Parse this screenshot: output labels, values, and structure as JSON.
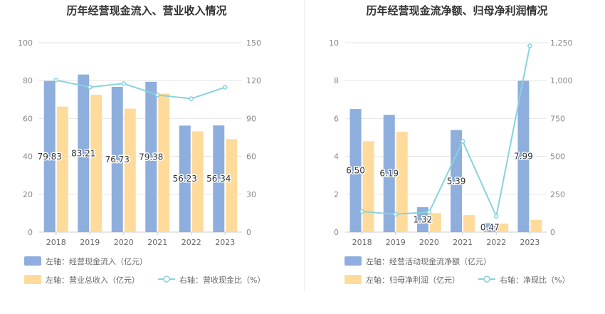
{
  "chart_data": [
    {
      "type": "bar",
      "title": "历年经营现金流入、营业收入情况",
      "categories": [
        "2018",
        "2019",
        "2020",
        "2021",
        "2022",
        "2023"
      ],
      "left_axis": {
        "ylim": [
          0,
          100
        ],
        "ticks": [
          "0",
          "20",
          "40",
          "60",
          "80",
          "100"
        ]
      },
      "right_axis": {
        "ylim": [
          0,
          150
        ],
        "ticks": [
          "0",
          "30",
          "60",
          "90",
          "120",
          "150"
        ]
      },
      "series": [
        {
          "name": "左轴：经营现金流入（亿元）",
          "type": "bar",
          "axis": "left",
          "color": "#8eaedd",
          "values": [
            79.83,
            83.21,
            76.73,
            79.38,
            56.23,
            56.34
          ],
          "labels": [
            "79.83",
            "83.21",
            "76.73",
            "79.38",
            "56.23",
            "56.34"
          ]
        },
        {
          "name": "左轴：营业总收入（亿元）",
          "type": "bar",
          "axis": "left",
          "color": "#ffdb9b",
          "values": [
            66.3,
            72.5,
            65.2,
            73.1,
            53.2,
            49.1
          ]
        },
        {
          "name": "右轴：营收现金比（%）",
          "type": "line",
          "axis": "right",
          "color": "#88d3dc",
          "values": [
            120.4,
            114.8,
            117.7,
            108.6,
            105.7,
            114.7
          ]
        }
      ],
      "legend_position": "bottom-left",
      "grid": true
    },
    {
      "type": "bar",
      "title": "历年经营现金流净额、归母净利润情况",
      "categories": [
        "2018",
        "2019",
        "2020",
        "2021",
        "2022",
        "2023"
      ],
      "left_axis": {
        "ylim": [
          0,
          10
        ],
        "ticks": [
          "0",
          "2",
          "4",
          "6",
          "8",
          "10"
        ]
      },
      "right_axis": {
        "ylim": [
          0,
          1250
        ],
        "ticks": [
          "0",
          "250",
          "500",
          "750",
          "1,000",
          "1,250"
        ]
      },
      "series": [
        {
          "name": "左轴：经营活动现金流净额（亿元）",
          "type": "bar",
          "axis": "left",
          "color": "#8eaedd",
          "values": [
            6.5,
            6.19,
            1.32,
            5.39,
            0.47,
            7.99
          ],
          "labels": [
            "6.50",
            "6.19",
            "1.32",
            "5.39",
            "0.47",
            "7.99"
          ]
        },
        {
          "name": "左轴：归母净利润（亿元）",
          "type": "bar",
          "axis": "left",
          "color": "#ffdb9b",
          "values": [
            4.8,
            5.3,
            1.0,
            0.9,
            0.45,
            0.65
          ]
        },
        {
          "name": "右轴：净现比（%）",
          "type": "line",
          "axis": "right",
          "color": "#88d3dc",
          "values": [
            136,
            118,
            132,
            600,
            104,
            1230
          ]
        }
      ],
      "legend_position": "bottom-left",
      "grid": true
    }
  ]
}
